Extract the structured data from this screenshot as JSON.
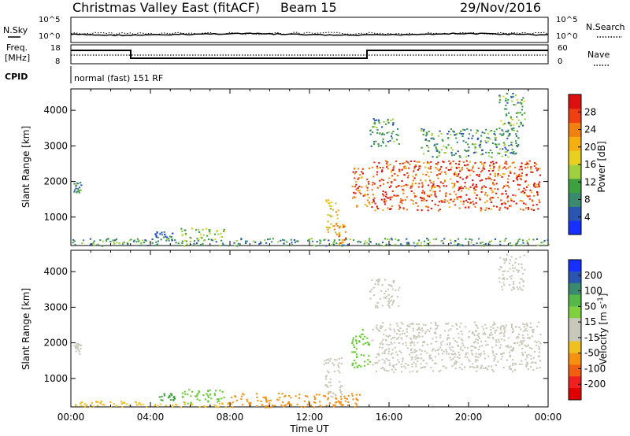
{
  "header": {
    "title": "Christmas Valley East (fitACF)",
    "beam": "Beam 15",
    "date": "29/Nov/2016"
  },
  "status": {
    "nsky_label": "N.Sky",
    "nsearch_label": "N.Search",
    "freq_label_line1": "Freq.",
    "freq_label_line2": "[MHz]",
    "nave_label": "Nave",
    "cpid_label": "CPID",
    "cpid_text": "normal (fast) 151 RF",
    "noise_left_ticks": [
      "10^5",
      "10^0"
    ],
    "noise_right_ticks": [
      "10^5",
      "10^0"
    ],
    "freq_ticks": [
      "18",
      "8"
    ],
    "nave_ticks": [
      "60",
      "0"
    ]
  },
  "chart_data": [
    {
      "type": "heatmap",
      "name": "power",
      "ylabel": "Slant Range [km]",
      "yticks": [
        1000,
        2000,
        3000,
        4000
      ],
      "ylim": [
        200,
        4600
      ],
      "xlim": [
        0,
        24
      ],
      "colorbar": {
        "label": "Power [dB]",
        "ticks": [
          4,
          8,
          12,
          16,
          20,
          24,
          28
        ],
        "range": [
          0,
          32
        ],
        "colors": [
          "#1530ff",
          "#2a55b0",
          "#3a8a70",
          "#3fa040",
          "#a0d040",
          "#e8d020",
          "#f5b010",
          "#f08010",
          "#ee4010",
          "#dd1010"
        ]
      },
      "regions": [
        {
          "t0": 0.1,
          "t1": 0.5,
          "r0": 1700,
          "r1": 2000,
          "level": 0.25
        },
        {
          "t0": 4.2,
          "t1": 5.2,
          "r0": 380,
          "r1": 600,
          "level": 0.2
        },
        {
          "t0": 5.5,
          "t1": 7.8,
          "r0": 350,
          "r1": 700,
          "level": 0.45
        },
        {
          "t0": 12.8,
          "t1": 13.5,
          "r0": 500,
          "r1": 1600,
          "level": 0.6
        },
        {
          "t0": 13.4,
          "t1": 13.8,
          "r0": 250,
          "r1": 800,
          "level": 0.75
        },
        {
          "t0": 14.1,
          "t1": 15.0,
          "r0": 1300,
          "r1": 2400,
          "level": 0.8
        },
        {
          "t0": 15.1,
          "t1": 23.6,
          "r0": 1200,
          "r1": 2600,
          "level": 0.85
        },
        {
          "t0": 15.0,
          "t1": 16.5,
          "r0": 3000,
          "r1": 3800,
          "level": 0.3
        },
        {
          "t0": 17.5,
          "t1": 22.5,
          "r0": 2700,
          "r1": 3500,
          "level": 0.3
        },
        {
          "t0": 21.5,
          "t1": 22.8,
          "r0": 3500,
          "r1": 4500,
          "level": 0.35
        },
        {
          "t0": 0.0,
          "t1": 24.0,
          "r0": 200,
          "r1": 420,
          "level": 0.3
        }
      ]
    },
    {
      "type": "heatmap",
      "name": "velocity",
      "ylabel": "Slant Range [km]",
      "yticks": [
        1000,
        2000,
        3000,
        4000
      ],
      "ylim": [
        200,
        4600
      ],
      "xlim": [
        0,
        24
      ],
      "xlabel": "Time UT",
      "xticks": [
        "00:00",
        "04:00",
        "08:00",
        "12:00",
        "16:00",
        "20:00",
        "00:00"
      ],
      "colorbar": {
        "label": "Velocity [m s^-1]",
        "ticks": [
          200,
          100,
          50,
          15,
          -15,
          -50,
          -100,
          -200
        ],
        "colors": [
          "#1530ff",
          "#2a55b0",
          "#3a8a70",
          "#55b848",
          "#80d040",
          "#c8c8b8",
          "#c8c8b8",
          "#f0c020",
          "#f59010",
          "#f06010",
          "#ee2020",
          "#e00000"
        ]
      },
      "regions": [
        {
          "t0": 0.1,
          "t1": 0.5,
          "r0": 1700,
          "r1": 2000,
          "fill": "#c8c8b8"
        },
        {
          "t0": 4.3,
          "t1": 5.2,
          "r0": 380,
          "r1": 600,
          "fill": "#3fa040"
        },
        {
          "t0": 5.5,
          "t1": 7.8,
          "r0": 300,
          "r1": 700,
          "fill": "#66cc33"
        },
        {
          "t0": 12.7,
          "t1": 13.6,
          "r0": 500,
          "r1": 1600,
          "fill": "#c8c8b8"
        },
        {
          "t0": 14.1,
          "t1": 15.0,
          "r0": 1300,
          "r1": 2400,
          "fill": "#66cc33"
        },
        {
          "t0": 15.1,
          "t1": 23.6,
          "r0": 1200,
          "r1": 2600,
          "fill": "#c8c8b8"
        },
        {
          "t0": 15.0,
          "t1": 16.5,
          "r0": 3000,
          "r1": 3800,
          "fill": "#c8c8b8"
        },
        {
          "t0": 21.5,
          "t1": 22.8,
          "r0": 3500,
          "r1": 4500,
          "fill": "#c8c8b8"
        },
        {
          "t0": 8.0,
          "t1": 14.5,
          "r0": 200,
          "r1": 600,
          "fill": "#f59010"
        },
        {
          "t0": 0.0,
          "t1": 8.0,
          "r0": 200,
          "r1": 380,
          "fill": "#f0c020"
        }
      ]
    }
  ]
}
